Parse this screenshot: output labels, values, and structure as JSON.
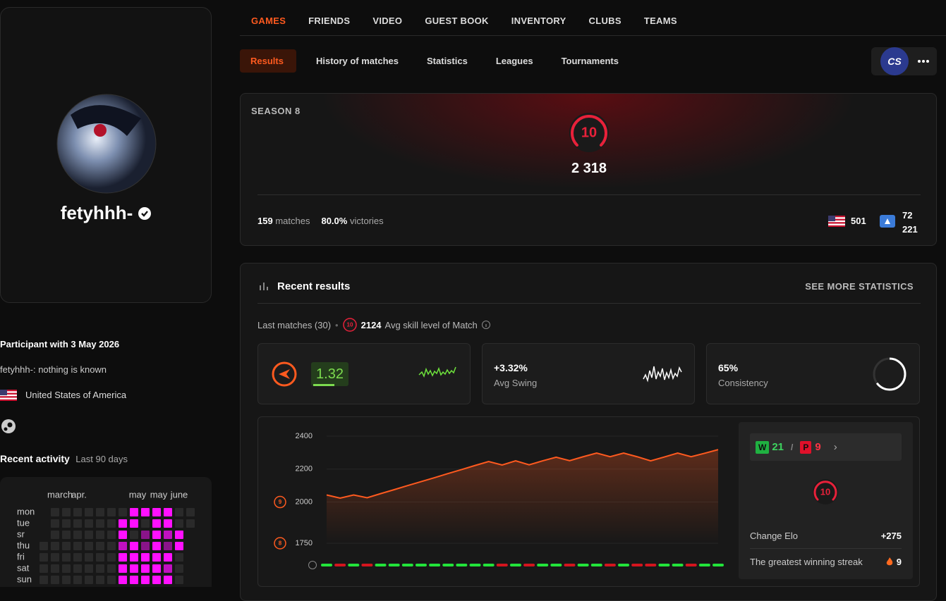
{
  "profile": {
    "nickname": "fetyhhh-",
    "participant_label": "Participant with",
    "participant_date": "3 May 2026",
    "bio": "fetyhhh-: nothing is known",
    "country": "United States of America"
  },
  "activity": {
    "title": "Recent activity",
    "period": "Last 90 days",
    "months": [
      "march",
      "apr.",
      "may",
      "may",
      "june"
    ],
    "days": [
      "mon",
      "tue",
      "sr",
      "thu",
      "fri",
      "sat",
      "sun"
    ],
    "cells": [
      [
        null,
        0,
        0,
        0,
        0,
        0,
        0,
        0,
        4,
        4,
        4,
        4,
        0,
        0
      ],
      [
        null,
        0,
        0,
        0,
        0,
        0,
        0,
        4,
        4,
        0,
        4,
        4,
        0,
        0
      ],
      [
        null,
        0,
        0,
        0,
        0,
        0,
        0,
        4,
        0,
        2,
        4,
        3,
        4,
        null
      ],
      [
        0,
        0,
        0,
        0,
        0,
        0,
        0,
        3,
        4,
        2,
        4,
        2,
        4,
        null
      ],
      [
        0,
        0,
        0,
        0,
        0,
        0,
        0,
        4,
        4,
        4,
        4,
        4,
        0,
        null
      ],
      [
        0,
        0,
        0,
        0,
        0,
        0,
        0,
        4,
        4,
        4,
        4,
        3,
        0,
        null
      ],
      [
        0,
        0,
        0,
        0,
        0,
        0,
        0,
        4,
        4,
        4,
        4,
        4,
        0,
        null
      ]
    ]
  },
  "tabs": [
    "GAMES",
    "FRIENDS",
    "VIDEO",
    "GUEST BOOK",
    "INVENTORY",
    "CLUBS",
    "TEAMS"
  ],
  "subtabs": [
    "Results",
    "History of matches",
    "Statistics",
    "Leagues",
    "Tournaments"
  ],
  "game_badge": "CS",
  "season": {
    "title": "SEASON 8",
    "level": "10",
    "elo": "2 318",
    "matches": "159",
    "matches_label": "matches",
    "winrate": "80.0%",
    "victories_label": "victories",
    "country_rank": "501",
    "region_rank": [
      "72",
      "221"
    ]
  },
  "recent": {
    "title": "Recent results",
    "more": "SEE MORE STATISTICS",
    "last_matches": "Last matches (30)",
    "avg_level": "10",
    "avg_elo": "2124",
    "avg_label": "Avg skill level of Match",
    "kd": "1.32",
    "swing": "+3.32%",
    "swing_label": "Avg Swing",
    "consistency": {
      "value": 65,
      "label": "65%"
    },
    "consistency_label": "Consistency"
  },
  "elo_chart": {
    "ylim": [
      1750,
      2400
    ],
    "yticks": [
      2400,
      2200,
      2000,
      1750
    ],
    "level_marks": [
      {
        "value": 2000,
        "label": "9"
      },
      {
        "value": 1750,
        "label": "8"
      }
    ],
    "values": [
      2043,
      2024,
      2043,
      2026,
      2051,
      2075,
      2100,
      2124,
      2148,
      2173,
      2197,
      2222,
      2246,
      2225,
      2250,
      2226,
      2250,
      2272,
      2251,
      2275,
      2297,
      2275,
      2297,
      2275,
      2250,
      2273,
      2297,
      2275,
      2296,
      2318
    ],
    "results": [
      1,
      0,
      1,
      0,
      1,
      1,
      1,
      1,
      1,
      1,
      1,
      1,
      1,
      0,
      1,
      0,
      1,
      1,
      0,
      1,
      1,
      0,
      1,
      0,
      0,
      1,
      1,
      0,
      1,
      1
    ]
  },
  "summary": {
    "wins_label": "W",
    "wins": 21,
    "separator": "/",
    "losses_label": "P",
    "losses": 9,
    "level": "10",
    "change_label": "Change Elo",
    "change": "+275",
    "streak_label": "The greatest winning streak",
    "streak": 9
  }
}
